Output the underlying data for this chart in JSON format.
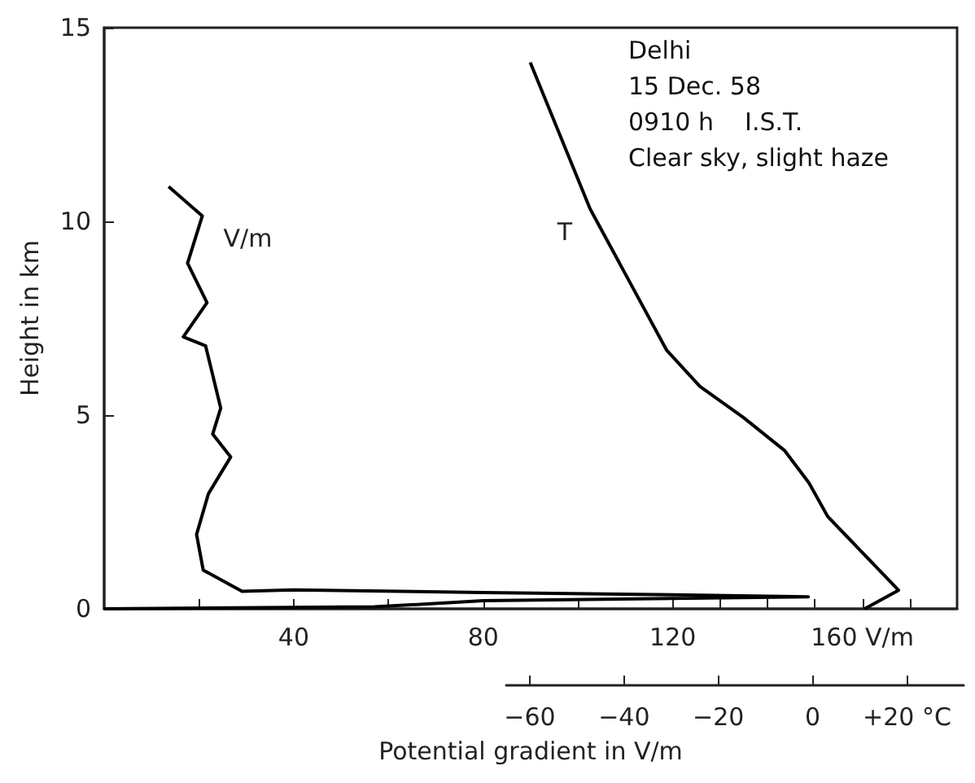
{
  "chart_data": {
    "type": "line",
    "xlabel": "Potential gradient in V/m",
    "ylabel": "Height in km",
    "annotations": [
      "Delhi",
      "15 Dec. 58",
      "0910 h    I.S.T.",
      "Clear sky, slight haze"
    ],
    "series": [
      {
        "name": "V/m",
        "color": "#000000",
        "x": [
          13.6,
          20.7,
          17.6,
          21.7,
          16.7,
          21.4,
          24.6,
          22.9,
          26.7,
          22,
          19.5,
          20.9,
          29.1,
          40,
          80,
          120,
          148.6,
          80,
          57,
          0
        ],
        "values": [
          10.9,
          10.14,
          8.92,
          7.9,
          7.02,
          6.79,
          5.18,
          4.51,
          3.92,
          2.97,
          1.92,
          1.0,
          0.45,
          0.49,
          0.42,
          0.36,
          0.31,
          0.21,
          0.05,
          0
        ]
      },
      {
        "name": "T",
        "color": "#000000",
        "axis": "x2",
        "x": [
          -59.9,
          -47.2,
          -31,
          -23.9,
          -14.6,
          -6,
          -0.8,
          3.2,
          18.2,
          11
        ],
        "values": [
          14.1,
          10.32,
          6.68,
          5.74,
          4.93,
          4.09,
          3.25,
          2.38,
          0.48,
          0
        ]
      }
    ],
    "xlim": [
      0,
      180
    ],
    "xticks": [
      {
        "value": 20,
        "label": null
      },
      40,
      {
        "value": 60,
        "label": null
      },
      80,
      {
        "value": 100,
        "label": null
      },
      120,
      {
        "value": 130,
        "label": null
      },
      {
        "value": 140,
        "label": null
      },
      {
        "value": 150,
        "label": null
      },
      {
        "value": 160,
        "label": "160 V/m"
      },
      {
        "value": 170,
        "label": null
      }
    ],
    "x2lim": [
      -65,
      32
    ],
    "x2ticks": [
      {
        "value": -60,
        "label": "−60"
      },
      {
        "value": -40,
        "label": "−40"
      },
      {
        "value": -20,
        "label": "−20"
      },
      0,
      {
        "value": 20,
        "label": "+20 °C"
      }
    ],
    "ylim": [
      0,
      15
    ],
    "yticks": [
      0,
      5,
      10,
      15
    ],
    "grid": false,
    "legend": false,
    "marker": "none",
    "line_style": "solid"
  }
}
